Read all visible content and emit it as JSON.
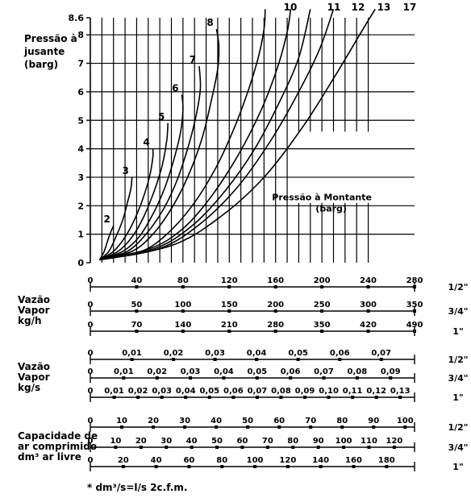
{
  "chart_data": {
    "type": "line",
    "ylabel_lines": [
      "Pressão à",
      "jusante",
      "(barg)"
    ],
    "y_ticks": [
      "0",
      "1",
      "2",
      "3",
      "4",
      "5",
      "6",
      "7",
      "8",
      "8.6"
    ],
    "ylim": [
      0,
      8.6
    ],
    "xlim": [
      0,
      280
    ],
    "inner_label_lines": [
      "Pressão à Montante",
      "(barg)"
    ],
    "series": [
      {
        "name": "2",
        "points": [
          [
            8,
            0.1
          ],
          [
            12,
            0.4
          ],
          [
            16,
            0.9
          ],
          [
            20,
            1.3
          ]
        ]
      },
      {
        "name": "3",
        "points": [
          [
            8,
            0.1
          ],
          [
            16,
            0.4
          ],
          [
            22,
            0.9
          ],
          [
            28,
            1.5
          ],
          [
            32,
            2.1
          ],
          [
            35,
            2.6
          ],
          [
            36,
            3.0
          ]
        ]
      },
      {
        "name": "4",
        "points": [
          [
            8,
            0.1
          ],
          [
            20,
            0.4
          ],
          [
            30,
            0.9
          ],
          [
            38,
            1.5
          ],
          [
            45,
            2.2
          ],
          [
            51,
            3.0
          ],
          [
            54,
            3.7
          ],
          [
            54,
            4.0
          ]
        ]
      },
      {
        "name": "5",
        "points": [
          [
            8,
            0.1
          ],
          [
            24,
            0.4
          ],
          [
            36,
            0.9
          ],
          [
            46,
            1.6
          ],
          [
            55,
            2.5
          ],
          [
            62,
            3.4
          ],
          [
            66,
            4.3
          ],
          [
            67,
            4.9
          ]
        ]
      },
      {
        "name": "6",
        "points": [
          [
            8,
            0.1
          ],
          [
            28,
            0.4
          ],
          [
            42,
            0.9
          ],
          [
            54,
            1.7
          ],
          [
            64,
            2.6
          ],
          [
            72,
            3.6
          ],
          [
            78,
            4.6
          ],
          [
            80,
            5.4
          ],
          [
            79,
            5.9
          ]
        ]
      },
      {
        "name": "7",
        "points": [
          [
            8,
            0.1
          ],
          [
            32,
            0.4
          ],
          [
            48,
            1.0
          ],
          [
            62,
            1.8
          ],
          [
            74,
            2.8
          ],
          [
            84,
            4.0
          ],
          [
            91,
            5.1
          ],
          [
            95,
            6.1
          ],
          [
            94,
            6.9
          ]
        ]
      },
      {
        "name": "8",
        "points": [
          [
            8,
            0.1
          ],
          [
            36,
            0.4
          ],
          [
            54,
            1.0
          ],
          [
            70,
            1.9
          ],
          [
            84,
            3.0
          ],
          [
            96,
            4.3
          ],
          [
            104,
            5.6
          ],
          [
            110,
            6.8
          ],
          [
            111,
            7.6
          ],
          [
            109,
            8.2
          ]
        ]
      },
      {
        "name": "10",
        "points": [
          [
            8,
            0.1
          ],
          [
            44,
            0.4
          ],
          [
            66,
            1.0
          ],
          [
            88,
            2.0
          ],
          [
            108,
            3.3
          ],
          [
            124,
            4.7
          ],
          [
            136,
            6.0
          ],
          [
            145,
            7.2
          ],
          [
            150,
            8.2
          ],
          [
            151,
            8.9
          ]
        ]
      },
      {
        "name": "11",
        "points": [
          [
            8,
            0.1
          ],
          [
            52,
            0.5
          ],
          [
            80,
            1.2
          ],
          [
            104,
            2.3
          ],
          [
            128,
            3.8
          ],
          [
            148,
            5.4
          ],
          [
            162,
            6.9
          ],
          [
            170,
            8.1
          ],
          [
            173,
            8.9
          ]
        ]
      },
      {
        "name": "12",
        "points": [
          [
            8,
            0.1
          ],
          [
            56,
            0.5
          ],
          [
            88,
            1.3
          ],
          [
            116,
            2.5
          ],
          [
            142,
            4.0
          ],
          [
            164,
            5.7
          ],
          [
            180,
            7.2
          ],
          [
            190,
            8.9
          ]
        ]
      },
      {
        "name": "13",
        "points": [
          [
            8,
            0.1
          ],
          [
            60,
            0.5
          ],
          [
            96,
            1.4
          ],
          [
            128,
            2.7
          ],
          [
            156,
            4.3
          ],
          [
            180,
            6.0
          ],
          [
            198,
            7.5
          ],
          [
            210,
            8.9
          ]
        ]
      },
      {
        "name": "17",
        "points": [
          [
            8,
            0.1
          ],
          [
            70,
            0.6
          ],
          [
            112,
            1.6
          ],
          [
            150,
            3.0
          ],
          [
            184,
            4.8
          ],
          [
            212,
            6.6
          ],
          [
            234,
            8.1
          ],
          [
            246,
            8.9
          ]
        ]
      }
    ],
    "scales": [
      {
        "group": "Vazão Vapor kg/h",
        "size": "1/2\"",
        "labels": [
          "0",
          "40",
          "80",
          "120",
          "160",
          "200",
          "240",
          "280"
        ],
        "values": [
          0,
          40,
          80,
          120,
          160,
          200,
          240,
          280
        ]
      },
      {
        "group": "Vazão Vapor kg/h",
        "size": "3/4\"",
        "labels": [
          "0",
          "50",
          "100",
          "150",
          "200",
          "250",
          "300",
          "350"
        ],
        "values": [
          0,
          50,
          100,
          150,
          200,
          250,
          300,
          350
        ]
      },
      {
        "group": "Vazão Vapor kg/h",
        "size": "1\"",
        "labels": [
          "0",
          "70",
          "140",
          "210",
          "280",
          "350",
          "420",
          "490"
        ],
        "values": [
          0,
          70,
          140,
          210,
          280,
          350,
          420,
          490
        ]
      },
      {
        "group": "Vazão Vapor kg/s",
        "size": "1/2\"",
        "labels": [
          "0",
          "0,01",
          "0,02",
          "0,03",
          "0,04",
          "0,05",
          "0,06",
          "0,07"
        ],
        "values": [
          0,
          0.01,
          0.02,
          0.03,
          0.04,
          0.05,
          0.06,
          0.07
        ],
        "max": 0.078
      },
      {
        "group": "Vazão Vapor kg/s",
        "size": "3/4\"",
        "labels": [
          "0",
          "0,01",
          "0,02",
          "0,03",
          "0,04",
          "0,05",
          "0,06",
          "0,07",
          "0,08",
          "0,09"
        ],
        "values": [
          0,
          0.01,
          0.02,
          0.03,
          0.04,
          0.05,
          0.06,
          0.07,
          0.08,
          0.09
        ],
        "max": 0.0972
      },
      {
        "group": "Vazão Vapor kg/s",
        "size": "1\"",
        "labels": [
          "0",
          "0,01",
          "0,02",
          "0,03",
          "0,04",
          "0,05",
          "0,06",
          "0,07",
          "0,08",
          "0,09",
          "0,10",
          "0,11",
          "0,12",
          "0,13"
        ],
        "values": [
          0,
          0.01,
          0.02,
          0.03,
          0.04,
          0.05,
          0.06,
          0.07,
          0.08,
          0.09,
          0.1,
          0.11,
          0.12,
          0.13
        ],
        "max": 0.136
      },
      {
        "group": "Capacidade de ar comprimido dm³ ar livre",
        "size": "1/2\"",
        "labels": [
          "0",
          "10",
          "20",
          "30",
          "40",
          "50",
          "60",
          "70",
          "80",
          "90",
          "100"
        ],
        "values": [
          0,
          10,
          20,
          30,
          40,
          50,
          60,
          70,
          80,
          90,
          100
        ],
        "max": 103
      },
      {
        "group": "Capacidade de ar comprimido dm³ ar livre",
        "size": "3/4\"",
        "labels": [
          "0",
          "10",
          "20",
          "30",
          "40",
          "50",
          "60",
          "70",
          "80",
          "90",
          "100",
          "110",
          "120"
        ],
        "values": [
          0,
          10,
          20,
          30,
          40,
          50,
          60,
          70,
          80,
          90,
          100,
          110,
          120
        ],
        "max": 128
      },
      {
        "group": "Capacidade de ar comprimido dm³ ar livre",
        "size": "1\"",
        "labels": [
          "0",
          "20",
          "40",
          "60",
          "80",
          "100",
          "120",
          "140",
          "160",
          "180"
        ],
        "values": [
          0,
          20,
          40,
          60,
          80,
          100,
          120,
          140,
          160,
          180
        ],
        "max": 197
      }
    ],
    "grid": true
  },
  "blocks": {
    "kgh_lines": [
      "Vazão",
      "Vapor",
      "kg/h"
    ],
    "kgs_lines": [
      "Vazão",
      "Vapor",
      "kg/s"
    ],
    "air_lines": [
      "Capacidade de",
      "ar comprimido",
      "dm³  ar livre"
    ]
  },
  "footnote": "*  dm³/s=l/s    2c.f.m."
}
